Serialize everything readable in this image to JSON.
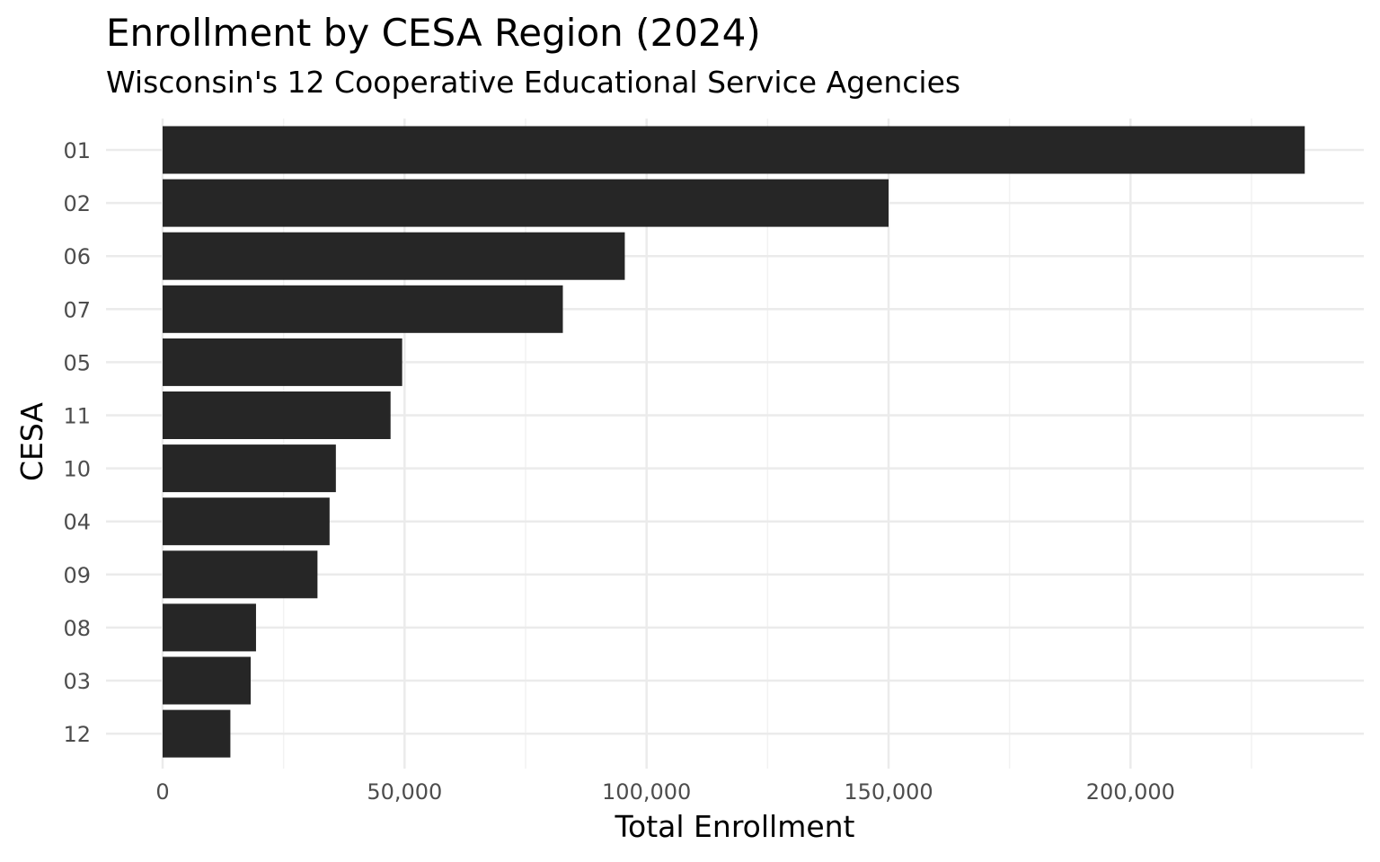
{
  "chart_data": {
    "type": "bar",
    "orientation": "horizontal",
    "title": "Enrollment by CESA Region (2024)",
    "subtitle": "Wisconsin's 12 Cooperative Educational Service Agencies",
    "xlabel": "Total Enrollment",
    "ylabel": "CESA",
    "categories": [
      "01",
      "02",
      "06",
      "07",
      "05",
      "11",
      "10",
      "04",
      "09",
      "08",
      "03",
      "12"
    ],
    "values": [
      236000,
      150000,
      95500,
      82700,
      49500,
      47100,
      35800,
      34500,
      32000,
      19300,
      18200,
      14000
    ],
    "xlim": [
      0,
      250000
    ],
    "xticks": [
      0,
      50000,
      100000,
      150000,
      200000
    ],
    "xtick_labels": [
      "0",
      "50,000",
      "100,000",
      "150,000",
      "200,000"
    ],
    "grid": true,
    "legend": "none",
    "colors": {
      "bar": "#262626",
      "grid_major": "#ebebeb",
      "grid_minor": "#f2f2f2",
      "tick_text": "#4d4d4d",
      "text": "#000000",
      "background": "#ffffff"
    }
  }
}
